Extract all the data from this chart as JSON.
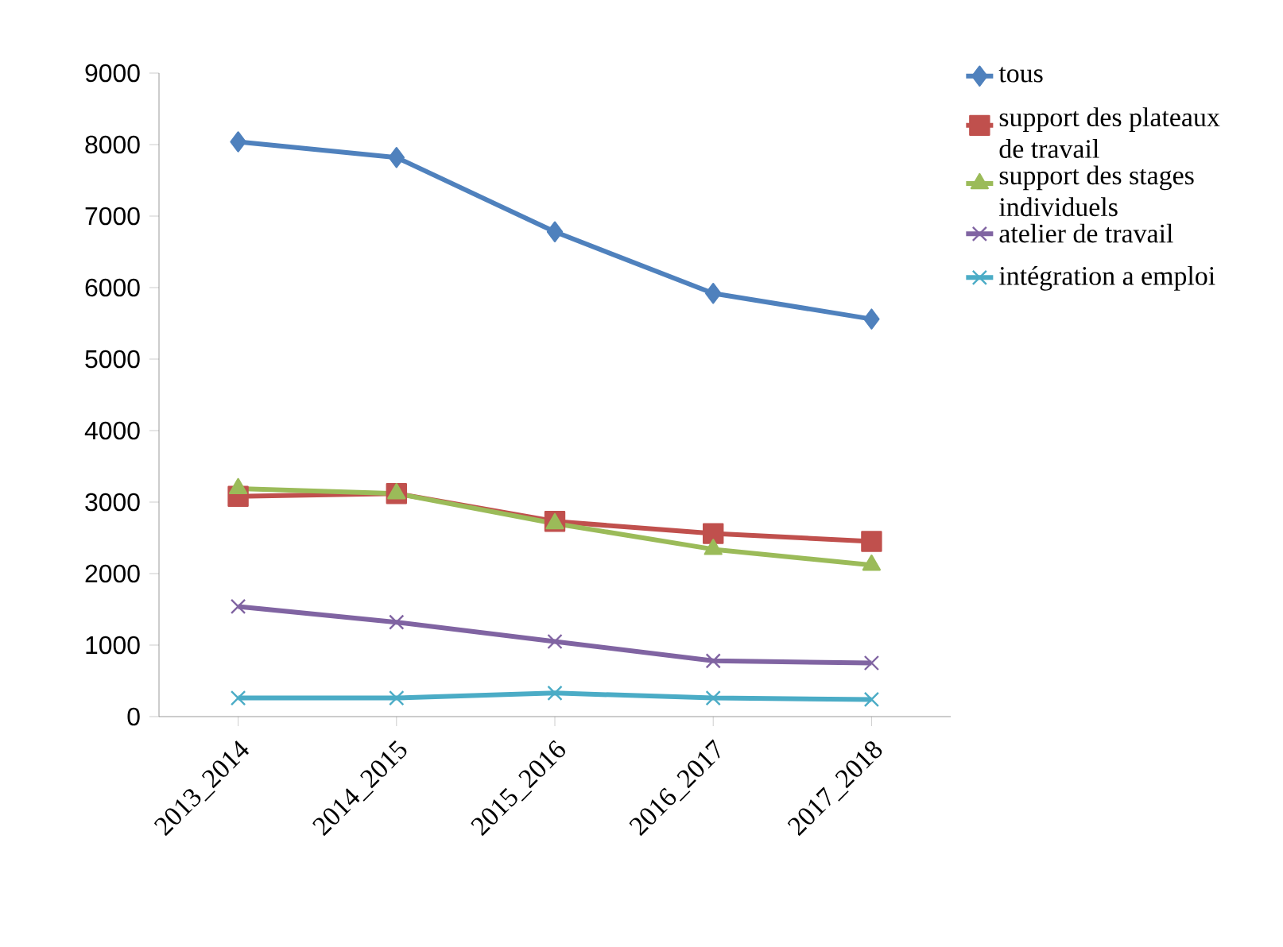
{
  "chart_data": {
    "type": "line",
    "categories": [
      "2013_2014",
      "2014_2015",
      "2015_2016",
      "2016_2017",
      "2017_2018"
    ],
    "series": [
      {
        "name": "tous",
        "color": "#4f81bd",
        "marker": "diamond",
        "values": [
          8040,
          7820,
          6780,
          5920,
          5560
        ]
      },
      {
        "name": "support des plateaux de travail",
        "color": "#c0504d",
        "marker": "square",
        "values": [
          3080,
          3120,
          2730,
          2560,
          2450
        ]
      },
      {
        "name": "support des stages individuels",
        "color": "#9bbb59",
        "marker": "triangle",
        "values": [
          3190,
          3120,
          2700,
          2340,
          2120
        ]
      },
      {
        "name": "atelier de travail",
        "color": "#8064a2",
        "marker": "cross",
        "values": [
          1540,
          1320,
          1050,
          780,
          750
        ]
      },
      {
        "name": "intégration a emploi",
        "color": "#4bacc6",
        "marker": "cross",
        "values": [
          260,
          260,
          330,
          260,
          240
        ]
      }
    ],
    "ylim": [
      0,
      9000
    ],
    "yticks": [
      0,
      1000,
      2000,
      3000,
      4000,
      5000,
      6000,
      7000,
      8000,
      9000
    ],
    "legend": "right",
    "grid": false
  }
}
